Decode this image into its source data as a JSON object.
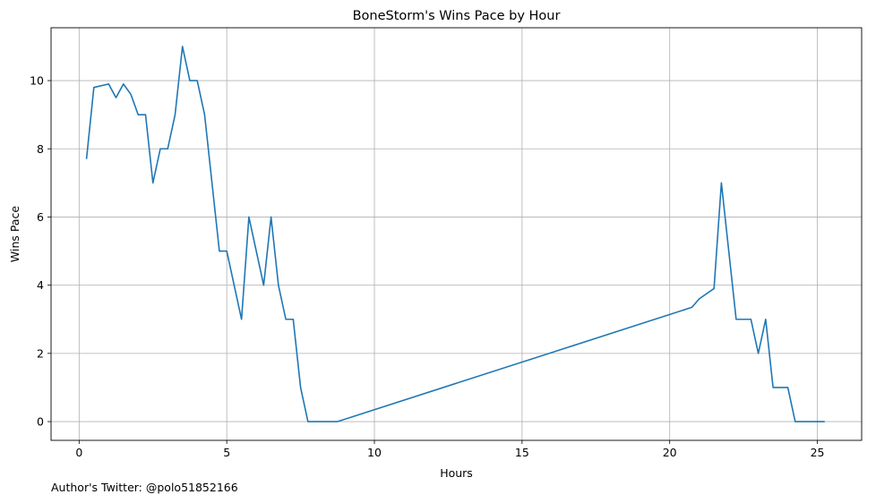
{
  "chart_data": {
    "type": "line",
    "title": "BoneStorm's Wins Pace by Hour",
    "xlabel": "Hours",
    "ylabel": "Wins Pace",
    "xlim": [
      -0.95,
      26.5
    ],
    "ylim": [
      -0.55,
      11.55
    ],
    "xticks": [
      0,
      5,
      10,
      15,
      20,
      25
    ],
    "yticks": [
      0,
      2,
      4,
      6,
      8,
      10
    ],
    "grid": true,
    "legend": "none",
    "line_color": "#1f77b4",
    "grid_color": "#b0b0b0",
    "x": [
      0.25,
      0.5,
      1.0,
      1.25,
      1.5,
      1.75,
      2.0,
      2.25,
      2.5,
      2.75,
      3.0,
      3.25,
      3.5,
      3.75,
      4.0,
      4.25,
      4.5,
      4.75,
      5.0,
      5.25,
      5.5,
      5.75,
      6.0,
      6.25,
      6.5,
      6.75,
      7.0,
      7.25,
      7.5,
      7.75,
      8.0,
      8.25,
      8.75,
      20.75,
      21.0,
      21.5,
      21.75,
      22.0,
      22.25,
      22.5,
      22.75,
      23.0,
      23.25,
      23.5,
      23.75,
      24.0,
      24.25,
      24.5,
      24.75,
      25.0,
      25.25
    ],
    "y": [
      7.7,
      9.8,
      9.9,
      9.5,
      9.9,
      9.6,
      9.0,
      9.0,
      7.0,
      8.0,
      8.0,
      9.0,
      11.0,
      10.0,
      10.0,
      9.0,
      7.0,
      5.0,
      5.0,
      4.0,
      3.0,
      6.0,
      5.0,
      4.0,
      6.0,
      4.0,
      3.0,
      3.0,
      1.0,
      0.0,
      0.0,
      0.0,
      0.0,
      3.35,
      3.6,
      3.9,
      7.0,
      5.0,
      3.0,
      3.0,
      3.0,
      2.0,
      3.0,
      1.0,
      1.0,
      1.0,
      0.0,
      0.0,
      0.0,
      0.0,
      0.0
    ]
  },
  "footnote": "Author's Twitter: @polo51852166"
}
